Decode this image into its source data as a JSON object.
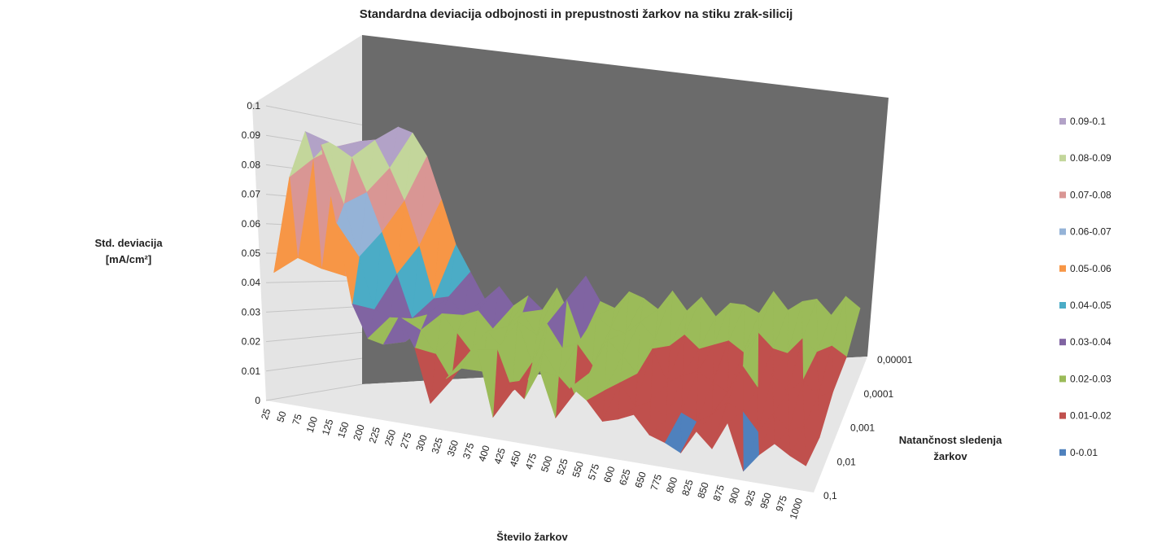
{
  "chart_data": {
    "type": "surface3d",
    "title": "Standardna deviacija odbojnosti in prepustnosti žarkov na stiku zrak-silicij",
    "zlabel_line1": "Std. deviacija",
    "zlabel_line2": "[mA/cm²]",
    "xlabel": "Število žarkov",
    "ylabel_line1": "Natančnost sledenja",
    "ylabel_line2": "žarkov",
    "zlim": [
      0,
      0.1
    ],
    "z_ticks": [
      "0",
      "0.01",
      "0.02",
      "0.03",
      "0.04",
      "0.05",
      "0.06",
      "0.07",
      "0.08",
      "0.09",
      "0.1"
    ],
    "x_categories": [
      "25",
      "50",
      "75",
      "100",
      "125",
      "150",
      "200",
      "225",
      "250",
      "275",
      "300",
      "325",
      "350",
      "375",
      "400",
      "425",
      "450",
      "475",
      "500",
      "525",
      "550",
      "575",
      "600",
      "625",
      "650",
      "775",
      "800",
      "825",
      "850",
      "875",
      "900",
      "925",
      "950",
      "975",
      "1000"
    ],
    "y_categories": [
      "0,1",
      "0,01",
      "0,001",
      "0,0001",
      "0,00001"
    ],
    "bands": [
      {
        "label": "0-0.01",
        "color": "#4f81bd"
      },
      {
        "label": "0.01-0.02",
        "color": "#c0504d"
      },
      {
        "label": "0.02-0.03",
        "color": "#9bbb59"
      },
      {
        "label": "0.03-0.04",
        "color": "#8064a2"
      },
      {
        "label": "0.04-0.05",
        "color": "#4bacc6"
      },
      {
        "label": "0.05-0.06",
        "color": "#f79646"
      },
      {
        "label": "0.06-0.07",
        "color": "#95b3d7"
      },
      {
        "label": "0.07-0.08",
        "color": "#d99694"
      },
      {
        "label": "0.08-0.09",
        "color": "#c3d69b"
      },
      {
        "label": "0.09-0.1",
        "color": "#b2a2c7"
      }
    ],
    "legend_position": "right",
    "grid": true,
    "z_values": [
      [
        0.044,
        0.078,
        0.095,
        0.092,
        0.066,
        0.039,
        0.028,
        0.027,
        0.038,
        0.028,
        0.009,
        0.019,
        0.024,
        0.032,
        0.008,
        0.022,
        0.017,
        0.029,
        0.012,
        0.025,
        0.021,
        0.014,
        0.016,
        0.019,
        0.012,
        0.01,
        0.007,
        0.017,
        0.011,
        0.023,
        0.004,
        0.012,
        0.018,
        0.014,
        0.011
      ],
      [
        0.049,
        0.085,
        0.092,
        0.071,
        0.053,
        0.035,
        0.033,
        0.025,
        0.03,
        0.022,
        0.013,
        0.023,
        0.018,
        0.027,
        0.012,
        0.017,
        0.029,
        0.02,
        0.014,
        0.023,
        0.017,
        0.021,
        0.012,
        0.015,
        0.008,
        0.012,
        0.009,
        0.013,
        0.019,
        0.016,
        0.008,
        0.017,
        0.01,
        0.013,
        0.009
      ],
      [
        0.045,
        0.09,
        0.087,
        0.075,
        0.061,
        0.046,
        0.03,
        0.032,
        0.033,
        0.026,
        0.019,
        0.028,
        0.022,
        0.033,
        0.017,
        0.033,
        0.024,
        0.026,
        0.018,
        0.029,
        0.023,
        0.016,
        0.027,
        0.013,
        0.017,
        0.019,
        0.015,
        0.011,
        0.023,
        0.014,
        0.021,
        0.013,
        0.019,
        0.012,
        0.015
      ],
      [
        0.042,
        0.093,
        0.094,
        0.084,
        0.072,
        0.055,
        0.035,
        0.036,
        0.029,
        0.031,
        0.024,
        0.025,
        0.031,
        0.022,
        0.028,
        0.037,
        0.02,
        0.031,
        0.026,
        0.024,
        0.029,
        0.022,
        0.019,
        0.024,
        0.018,
        0.02,
        0.022,
        0.017,
        0.026,
        0.019,
        0.017,
        0.024,
        0.018,
        0.021,
        0.016
      ],
      [
        0.04,
        0.095,
        0.1,
        0.098,
        0.089,
        0.072,
        0.054,
        0.043,
        0.032,
        0.037,
        0.029,
        0.033,
        0.027,
        0.036,
        0.023,
        0.041,
        0.03,
        0.027,
        0.034,
        0.031,
        0.026,
        0.034,
        0.025,
        0.031,
        0.022,
        0.028,
        0.027,
        0.023,
        0.033,
        0.024,
        0.028,
        0.029,
        0.021,
        0.03,
        0.024
      ]
    ]
  }
}
